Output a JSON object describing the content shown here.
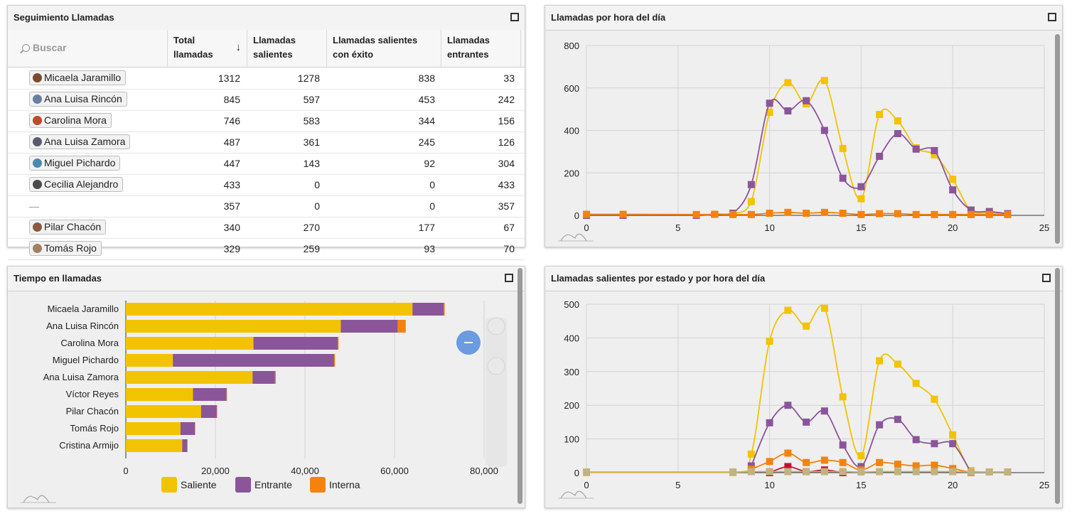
{
  "panels": {
    "table": {
      "title": "Seguimiento Llamadas"
    },
    "hourly": {
      "title": "Llamadas por hora del día"
    },
    "time": {
      "title": "Tiempo en llamadas"
    },
    "outgoing": {
      "title": "Llamadas salientes por estado y por hora del día"
    }
  },
  "table": {
    "search_placeholder": "Buscar",
    "sort_indicator": "↓",
    "columns": [
      "Total llamadas",
      "Llamadas salientes",
      "Llamadas salientes con éxito",
      "Llamadas entrantes"
    ],
    "columns_lines": [
      [
        "Total",
        "llamadas"
      ],
      [
        "Llamadas",
        "salientes"
      ],
      [
        "Llamadas salientes",
        "con éxito"
      ],
      [
        "Llamadas",
        "entrantes"
      ]
    ],
    "rows": [
      {
        "name": "Micaela Jaramillo",
        "total": "1312",
        "out": "1278",
        "ok": "838",
        "in": "33",
        "avatar": "#7a4a2a"
      },
      {
        "name": "Ana Luisa Rincón",
        "total": "845",
        "out": "597",
        "ok": "453",
        "in": "242",
        "avatar": "#6a7fa0"
      },
      {
        "name": "Carolina Mora",
        "total": "746",
        "out": "583",
        "ok": "344",
        "in": "156",
        "avatar": "#c04a2a"
      },
      {
        "name": "Ana Luisa Zamora",
        "total": "487",
        "out": "361",
        "ok": "245",
        "in": "126",
        "avatar": "#5a5a70"
      },
      {
        "name": "Miguel Pichardo",
        "total": "447",
        "out": "143",
        "ok": "92",
        "in": "304",
        "avatar": "#4a8ab0"
      },
      {
        "name": "Cecilia Alejandro",
        "total": "433",
        "out": "0",
        "ok": "0",
        "in": "433",
        "avatar": "#4a4a4a"
      },
      {
        "name": "—",
        "total": "357",
        "out": "0",
        "ok": "0",
        "in": "357",
        "avatar": ""
      },
      {
        "name": "Pilar Chacón",
        "total": "340",
        "out": "270",
        "ok": "177",
        "in": "67",
        "avatar": "#8a5a40"
      },
      {
        "name": "Tomás Rojo",
        "total": "329",
        "out": "259",
        "ok": "93",
        "in": "70",
        "avatar": "#a08060"
      }
    ]
  },
  "chart_data": [
    {
      "type": "line",
      "title": "Llamadas por hora del día",
      "xlim": [
        0,
        25
      ],
      "ylim": [
        0,
        800
      ],
      "xticks": [
        "0",
        "5",
        "10",
        "15",
        "20",
        "25"
      ],
      "yticks": [
        "0",
        "200",
        "400",
        "600",
        "800"
      ],
      "grid": true,
      "series": [
        {
          "color": "#f2c300",
          "x": [
            0,
            2,
            6,
            7,
            8,
            9,
            10,
            11,
            12,
            13,
            14,
            15,
            16,
            17,
            18,
            19,
            20,
            21,
            22,
            23
          ],
          "y": [
            0,
            0,
            0,
            5,
            8,
            65,
            485,
            625,
            525,
            635,
            315,
            78,
            475,
            445,
            318,
            285,
            170,
            22,
            12,
            5
          ]
        },
        {
          "color": "#8b559a",
          "x": [
            0,
            2,
            6,
            7,
            8,
            9,
            10,
            11,
            12,
            13,
            14,
            15,
            16,
            17,
            18,
            19,
            20,
            21,
            22,
            23
          ],
          "y": [
            0,
            0,
            0,
            5,
            10,
            145,
            528,
            492,
            540,
            400,
            175,
            135,
            278,
            385,
            312,
            305,
            120,
            25,
            18,
            8
          ]
        },
        {
          "color": "#f5820d",
          "x": [
            0,
            2,
            6,
            7,
            8,
            9,
            10,
            11,
            12,
            13,
            14,
            15,
            16,
            17,
            18,
            19,
            20,
            21,
            22,
            23
          ],
          "y": [
            5,
            5,
            4,
            5,
            4,
            4,
            10,
            14,
            10,
            14,
            10,
            4,
            8,
            8,
            4,
            4,
            4,
            4,
            4,
            4
          ]
        }
      ]
    },
    {
      "type": "bar",
      "title": "Tiempo en llamadas",
      "orientation": "horizontal",
      "stacked": true,
      "xlim": [
        0,
        80000
      ],
      "xticks": [
        "0",
        "20,000",
        "40,000",
        "60,000",
        "80,000"
      ],
      "legend_position": "bottom",
      "categories": [
        "Micaela Jaramillo",
        "Ana Luisa Rincón",
        "Carolina Mora",
        "Miguel Pichardo",
        "Ana Luisa Zamora",
        "Víctor Reyes",
        "Pilar Chacón",
        "Tomás Rojo",
        "Cristina Armijo"
      ],
      "series": [
        {
          "name": "Saliente",
          "color": "#f2c300",
          "values": [
            64000,
            48000,
            28500,
            10500,
            28300,
            15000,
            16800,
            12200,
            12600
          ]
        },
        {
          "name": "Entrante",
          "color": "#8b559a",
          "values": [
            7000,
            12700,
            18800,
            36000,
            5000,
            7500,
            3500,
            3200,
            1100
          ]
        },
        {
          "name": "Interna",
          "color": "#f5820d",
          "values": [
            200,
            1800,
            200,
            200,
            200,
            100,
            100,
            100,
            100
          ]
        }
      ]
    },
    {
      "type": "line",
      "title": "Llamadas salientes por estado y por hora del día",
      "xlim": [
        0,
        25
      ],
      "ylim": [
        0,
        500
      ],
      "xticks": [
        "0",
        "5",
        "10",
        "15",
        "20",
        "25"
      ],
      "yticks": [
        "0",
        "100",
        "200",
        "300",
        "400",
        "500"
      ],
      "grid": true,
      "series": [
        {
          "color": "#f2c300",
          "x": [
            0,
            8,
            9,
            10,
            11,
            12,
            13,
            14,
            15,
            16,
            17,
            18,
            19,
            20,
            21,
            22,
            23
          ],
          "y": [
            0,
            0,
            55,
            390,
            482,
            435,
            488,
            225,
            50,
            332,
            322,
            265,
            218,
            112,
            6,
            2,
            2
          ]
        },
        {
          "color": "#8b559a",
          "x": [
            9,
            10,
            11,
            12,
            13,
            14,
            15,
            16,
            17,
            18,
            19,
            20,
            21
          ],
          "y": [
            20,
            148,
            200,
            150,
            183,
            82,
            18,
            142,
            158,
            98,
            86,
            86,
            0
          ]
        },
        {
          "color": "#f5820d",
          "x": [
            9,
            10,
            11,
            12,
            13,
            14,
            15,
            16,
            17,
            18,
            19,
            20,
            21
          ],
          "y": [
            10,
            33,
            58,
            30,
            37,
            30,
            8,
            30,
            25,
            20,
            22,
            12,
            0
          ]
        },
        {
          "color": "#c8102e",
          "x": [
            10,
            11,
            12,
            13,
            14
          ],
          "y": [
            0,
            18,
            3,
            8,
            0
          ]
        },
        {
          "color": "#c2b280",
          "x": [
            0,
            8,
            9,
            10,
            11,
            12,
            13,
            14,
            15,
            16,
            17,
            18,
            19,
            20,
            21,
            22,
            23
          ],
          "y": [
            2,
            2,
            3,
            3,
            3,
            3,
            3,
            3,
            2,
            3,
            3,
            3,
            3,
            3,
            2,
            2,
            2
          ]
        }
      ]
    }
  ]
}
